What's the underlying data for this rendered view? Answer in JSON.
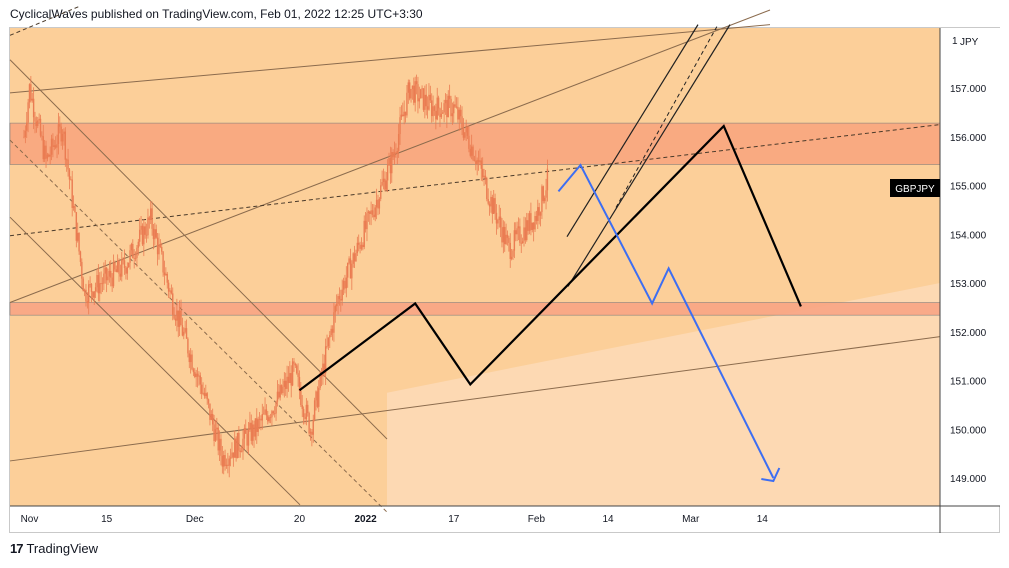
{
  "header": {
    "text": "CyclicalWaves published on TradingView.com, Feb 01, 2022 12:25 UTC+3:30"
  },
  "footer": {
    "logo_glyph": "17",
    "brand": "TradingView"
  },
  "chart_data": {
    "type": "candlestick",
    "symbol": "GBPJPY",
    "currency": "JPY",
    "price_axis": {
      "ticks": [
        "149.000",
        "150.000",
        "151.000",
        "152.000",
        "153.000",
        "154.000",
        "155.000",
        "156.000",
        "157.000"
      ],
      "range": [
        148.45,
        158.15
      ],
      "top_label": "1"
    },
    "time_axis": {
      "ticks": [
        "Nov",
        "15",
        "Dec",
        "20",
        "2022",
        "17",
        "Feb",
        "14",
        "Mar",
        "14"
      ],
      "bold_ticks": [
        "2022"
      ]
    },
    "zones": [
      {
        "name": "upper resistance zone",
        "from": 155.43,
        "to": 156.28
      },
      {
        "name": "lower support zone",
        "from": 152.34,
        "to": 152.6
      }
    ],
    "projection_black": [
      {
        "date": "Dec 20",
        "price": 150.8
      },
      {
        "date": "Jan 10",
        "price": 152.58
      },
      {
        "date": "Jan 20",
        "price": 150.92
      },
      {
        "date": "Mar 07",
        "price": 156.22
      },
      {
        "date": "Mar 21",
        "price": 152.52
      }
    ],
    "projection_blue": [
      {
        "date": "Feb 05",
        "price": 154.88
      },
      {
        "date": "Feb 09",
        "price": 155.42
      },
      {
        "date": "Feb 22",
        "price": 152.58
      },
      {
        "date": "Feb 25",
        "price": 153.3
      },
      {
        "date": "Mar 16",
        "price": 149.0
      }
    ],
    "colors": {
      "background": "#fdd9b3",
      "upper_region": "#fccf99",
      "upper_zone": "#f9a77f",
      "lower_zone": "#f9a585",
      "candles": "#ea7c52",
      "projection_black": "#000000",
      "projection_blue": "#3d6ef2",
      "trendlines": "#8b6b4d"
    }
  }
}
